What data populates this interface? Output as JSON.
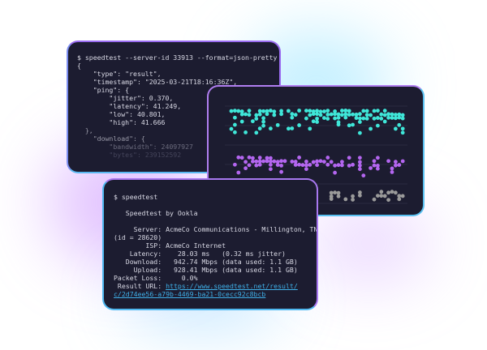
{
  "json_window": {
    "command": "$ speedtest --server-id 33913 --format=json-pretty",
    "lines": [
      "{",
      "    \"type\": \"result\",",
      "    \"timestamp\": \"2025-03-21T18:16:36Z\",",
      "    \"ping\": {",
      "        \"jitter\": 0.370,",
      "        \"latency\": 41.249,",
      "        \"low\": 40.801,",
      "        \"high\": 41.666",
      "  },",
      "    \"download\": {",
      "        \"bandwidth\": 24097927",
      "        \"bytes\": 239152592"
    ]
  },
  "chart_window": {
    "colors": {
      "download": "#3fe6d8",
      "upload": "#b466f0",
      "latency": "#9a9a9a",
      "grid": "#2a2a40"
    }
  },
  "cli_window": {
    "command": "$ speedtest",
    "brand": "   Speedtest by Ookla",
    "server": "     Server: AcmeCo Communications - Millington, TN",
    "server_id": "(id = 28620)",
    "isp": "        ISP: AcmeCo Internet",
    "latency": "    Latency:    28.03 ms   (0.32 ms jitter)",
    "download": "   Download:   942.74 Mbps (data used: 1.1 GB)",
    "upload": "     Upload:   928.41 Mbps (data used: 1.1 GB)",
    "packet_loss": "Packet Loss:     0.0%",
    "result_label": " Result URL: ",
    "result_url_1": "https://www.speedtest.net/result/",
    "result_url_2": "c/2d74ee56-a79b-4469-ba21-0cecc92c8bcb"
  }
}
